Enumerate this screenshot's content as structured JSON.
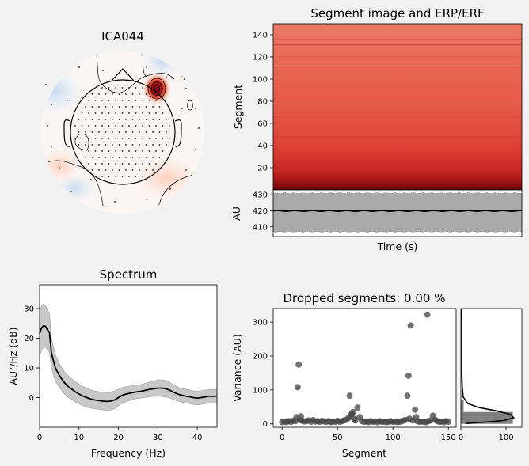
{
  "colors": {
    "figure_bg": "#f2f2f2",
    "axes_bg": "#ffffff",
    "line": "#000000",
    "band": "#aaaaaa",
    "spectrum_band": "#c8c8c8",
    "scatter": "#444444",
    "hist": "#808080"
  },
  "chart_data": [
    {
      "type": "heatmap",
      "panel": "topomap",
      "title": "ICA044"
    },
    {
      "type": "heatmap",
      "panel": "segment-image",
      "title": "Segment image and ERP/ERF",
      "xlabel": "",
      "ylabel": "Segment",
      "ylim": [
        0,
        150
      ],
      "yticks": [
        20,
        40,
        60,
        80,
        100,
        120,
        140
      ],
      "colorscale": "Reds"
    },
    {
      "type": "line",
      "panel": "erp",
      "xlabel": "Time (s)",
      "ylabel": "AU",
      "ylim": [
        404,
        433
      ],
      "yticks": [
        410,
        420,
        430
      ],
      "mean": 420,
      "band": [
        407,
        431
      ]
    },
    {
      "type": "line",
      "panel": "spectrum",
      "title": "Spectrum",
      "xlabel": "Frequency (Hz)",
      "ylabel": "AU²/Hz (dB)",
      "xlim": [
        0,
        45
      ],
      "ylim": [
        -10,
        38
      ],
      "xticks": [
        0,
        10,
        20,
        30,
        40
      ],
      "yticks": [
        0,
        10,
        20,
        30
      ],
      "x": [
        0,
        0.5,
        1,
        1.5,
        2,
        2.5,
        3,
        4,
        5,
        6,
        7,
        8,
        9,
        10,
        11,
        12,
        13,
        14,
        15,
        16,
        17,
        18,
        19,
        20,
        21,
        22,
        23,
        24,
        25,
        26,
        27,
        28,
        29,
        30,
        31,
        32,
        33,
        34,
        35,
        36,
        37,
        38,
        39,
        40,
        41,
        42,
        43,
        44,
        45
      ],
      "y": [
        21.5,
        23.5,
        24.2,
        24,
        22.8,
        22,
        15,
        10,
        7.5,
        5.5,
        4,
        3,
        2,
        1.2,
        0.5,
        0,
        -0.5,
        -0.8,
        -1,
        -1.2,
        -1.3,
        -1.2,
        -0.8,
        0,
        0.8,
        1.2,
        1.5,
        1.8,
        2,
        2.2,
        2.5,
        2.8,
        3,
        3.2,
        3.2,
        3,
        2.5,
        1.8,
        1.2,
        0.8,
        0.5,
        0.3,
        0,
        -0.2,
        0,
        0.2,
        0.5,
        0.4,
        0.5
      ],
      "band_halfwidth": [
        7.5,
        7.5,
        7.3,
        7,
        6.8,
        6.5,
        5,
        4.5,
        4,
        3.8,
        3.6,
        3.5,
        3.4,
        3.3,
        3.2,
        3.2,
        3.1,
        3,
        3,
        3,
        3,
        3,
        3,
        2.8,
        2.6,
        2.5,
        2.4,
        2.3,
        2.3,
        2.3,
        2.4,
        2.5,
        2.6,
        2.8,
        2.8,
        2.8,
        2.6,
        2.5,
        2.4,
        2.3,
        2.3,
        2.3,
        2.3,
        2.3,
        2.3,
        2.3,
        2.3,
        2.3,
        2.3
      ]
    },
    {
      "type": "scatter",
      "panel": "variance",
      "title": "Dropped segments: 0.00 %",
      "xlabel": "Segment",
      "ylabel": "Variance (AU)",
      "xlim": [
        -8,
        157
      ],
      "ylim": [
        -10,
        340
      ],
      "xticks": [
        0,
        50,
        100,
        150
      ],
      "yticks": [
        0,
        100,
        200,
        300
      ],
      "points": [
        [
          0,
          5
        ],
        [
          2,
          7
        ],
        [
          4,
          5
        ],
        [
          6,
          8
        ],
        [
          8,
          6
        ],
        [
          10,
          9
        ],
        [
          12,
          8
        ],
        [
          13,
          20
        ],
        [
          14,
          108
        ],
        [
          15,
          175
        ],
        [
          16,
          12
        ],
        [
          17,
          22
        ],
        [
          18,
          9
        ],
        [
          20,
          7
        ],
        [
          22,
          8
        ],
        [
          24,
          10
        ],
        [
          26,
          6
        ],
        [
          28,
          11
        ],
        [
          30,
          7
        ],
        [
          32,
          8
        ],
        [
          34,
          6
        ],
        [
          36,
          9
        ],
        [
          38,
          7
        ],
        [
          40,
          6
        ],
        [
          42,
          8
        ],
        [
          44,
          5
        ],
        [
          46,
          7
        ],
        [
          48,
          6
        ],
        [
          50,
          9
        ],
        [
          52,
          6
        ],
        [
          54,
          8
        ],
        [
          56,
          10
        ],
        [
          58,
          12
        ],
        [
          60,
          18
        ],
        [
          61,
          83
        ],
        [
          62,
          25
        ],
        [
          63,
          30
        ],
        [
          64,
          35
        ],
        [
          65,
          15
        ],
        [
          66,
          10
        ],
        [
          68,
          48
        ],
        [
          70,
          20
        ],
        [
          72,
          8
        ],
        [
          74,
          6
        ],
        [
          76,
          7
        ],
        [
          78,
          5
        ],
        [
          80,
          8
        ],
        [
          82,
          6
        ],
        [
          84,
          7
        ],
        [
          86,
          5
        ],
        [
          88,
          8
        ],
        [
          90,
          6
        ],
        [
          92,
          7
        ],
        [
          94,
          5
        ],
        [
          96,
          6
        ],
        [
          98,
          8
        ],
        [
          100,
          6
        ],
        [
          102,
          7
        ],
        [
          104,
          5
        ],
        [
          106,
          6
        ],
        [
          108,
          8
        ],
        [
          110,
          10
        ],
        [
          112,
          12
        ],
        [
          113,
          83
        ],
        [
          114,
          142
        ],
        [
          115,
          15
        ],
        [
          116,
          290
        ],
        [
          118,
          10
        ],
        [
          120,
          42
        ],
        [
          121,
          20
        ],
        [
          122,
          8
        ],
        [
          124,
          6
        ],
        [
          126,
          7
        ],
        [
          128,
          6
        ],
        [
          130,
          5
        ],
        [
          131,
          322
        ],
        [
          132,
          8
        ],
        [
          134,
          10
        ],
        [
          136,
          24
        ],
        [
          138,
          12
        ],
        [
          140,
          8
        ],
        [
          142,
          6
        ],
        [
          144,
          7
        ],
        [
          146,
          5
        ],
        [
          148,
          8
        ],
        [
          150,
          6
        ]
      ]
    },
    {
      "type": "bar",
      "panel": "variance-histogram",
      "orientation": "horizontal",
      "xlabel": "",
      "xlim": [
        0,
        135
      ],
      "xticks": [
        0,
        100
      ],
      "bins": [
        [
          0,
          35,
          115
        ],
        [
          35,
          70,
          6
        ]
      ],
      "kde": [
        [
          1,
          340
        ],
        [
          2,
          300
        ],
        [
          2,
          250
        ],
        [
          2,
          200
        ],
        [
          2,
          150
        ],
        [
          3,
          110
        ],
        [
          5,
          80
        ],
        [
          15,
          60
        ],
        [
          40,
          48
        ],
        [
          80,
          38
        ],
        [
          110,
          28
        ],
        [
          117,
          18
        ],
        [
          95,
          10
        ],
        [
          60,
          6
        ],
        [
          30,
          3
        ],
        [
          10,
          1
        ]
      ]
    }
  ]
}
